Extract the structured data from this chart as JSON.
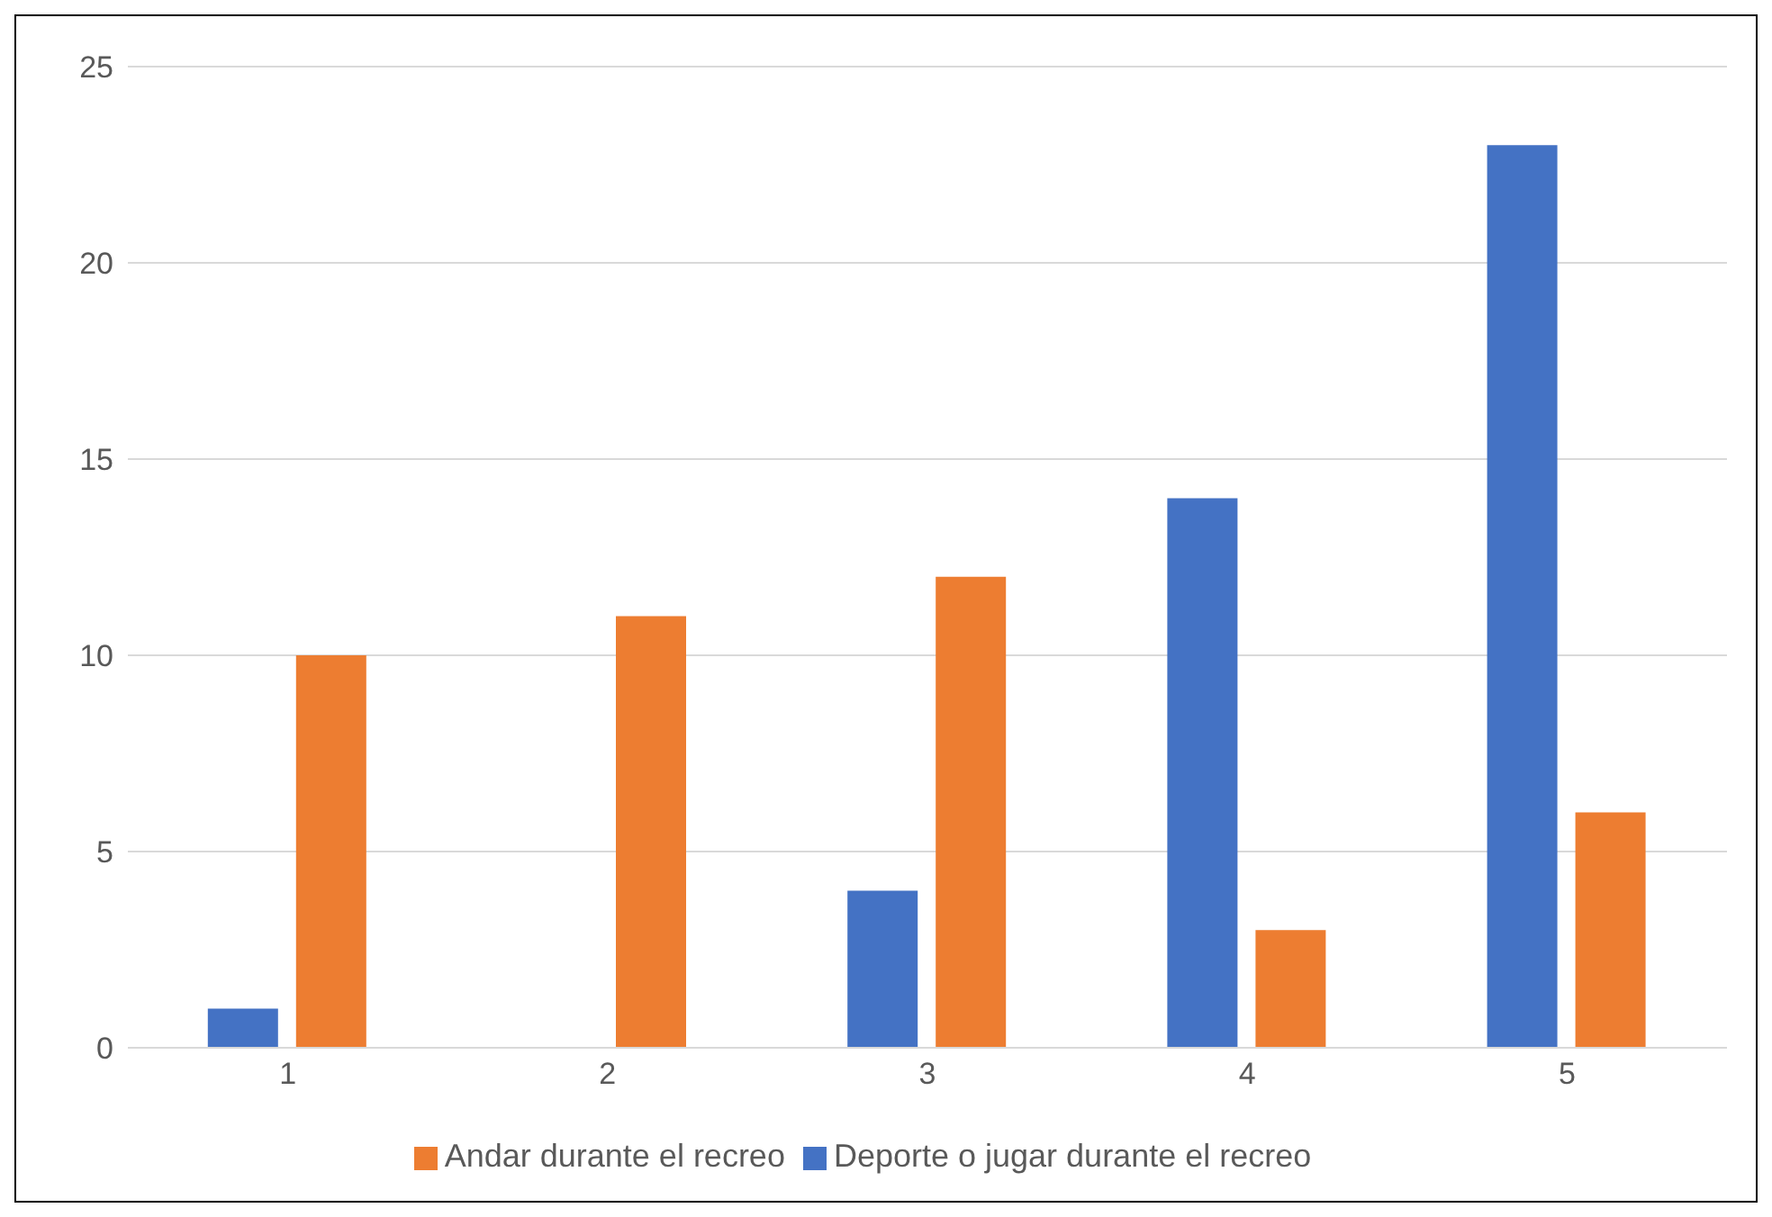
{
  "chart_data": {
    "type": "bar",
    "categories": [
      "1",
      "2",
      "3",
      "4",
      "5"
    ],
    "series": [
      {
        "name": "Deporte o jugar durante el recreo",
        "color": "#4472c4",
        "values": [
          1,
          0,
          4,
          14,
          23
        ]
      },
      {
        "name": "Andar durante el recreo",
        "color": "#ed7d31",
        "values": [
          10,
          11,
          12,
          3,
          6
        ]
      }
    ],
    "ylim": [
      0,
      25
    ],
    "yticks": [
      0,
      5,
      10,
      15,
      20,
      25
    ],
    "grid": "y",
    "legend": "bottom"
  }
}
